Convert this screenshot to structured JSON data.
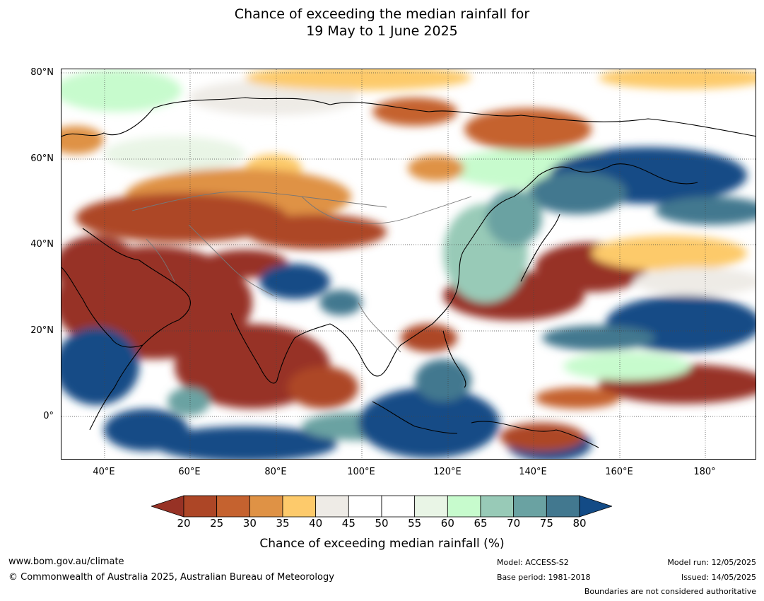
{
  "title": {
    "line1": "Chance of exceeding the median rainfall for",
    "line2": "19 May to 1 June 2025"
  },
  "axes": {
    "lat_labels": [
      "80°N",
      "60°N",
      "40°N",
      "20°N",
      "0°"
    ],
    "lon_labels": [
      "40°E",
      "60°E",
      "80°E",
      "100°E",
      "120°E",
      "140°E",
      "160°E",
      "180°"
    ],
    "lat_range": [
      -10,
      80
    ],
    "lon_range": [
      30,
      192
    ]
  },
  "colorbar": {
    "title": "Chance of exceeding median rainfall (%)",
    "ticks": [
      "20",
      "25",
      "30",
      "35",
      "40",
      "45",
      "50",
      "55",
      "60",
      "65",
      "70",
      "75",
      "80"
    ],
    "colors": [
      "#973225",
      "#ad4626",
      "#c5622f",
      "#df9245",
      "#fdca6b",
      "#eeebe6",
      "#ffffff",
      "#ffffff",
      "#e9f5e6",
      "#c7fbcd",
      "#98cab7",
      "#6aa2a2",
      "#42788f",
      "#134b86"
    ],
    "extend_low_color": "#973225",
    "extend_high_color": "#134b86"
  },
  "footer": {
    "website": "www.bom.gov.au/climate",
    "copyright": "© Commonwealth of Australia 2025, Australian Bureau of Meteorology",
    "model": "Model: ACCESS-S2",
    "base_period": "Base period: 1981-2018",
    "model_run": "Model run: 12/05/2025",
    "issued": "Issued: 14/05/2025",
    "disclaimer": "Boundaries are not considered authoritative"
  }
}
